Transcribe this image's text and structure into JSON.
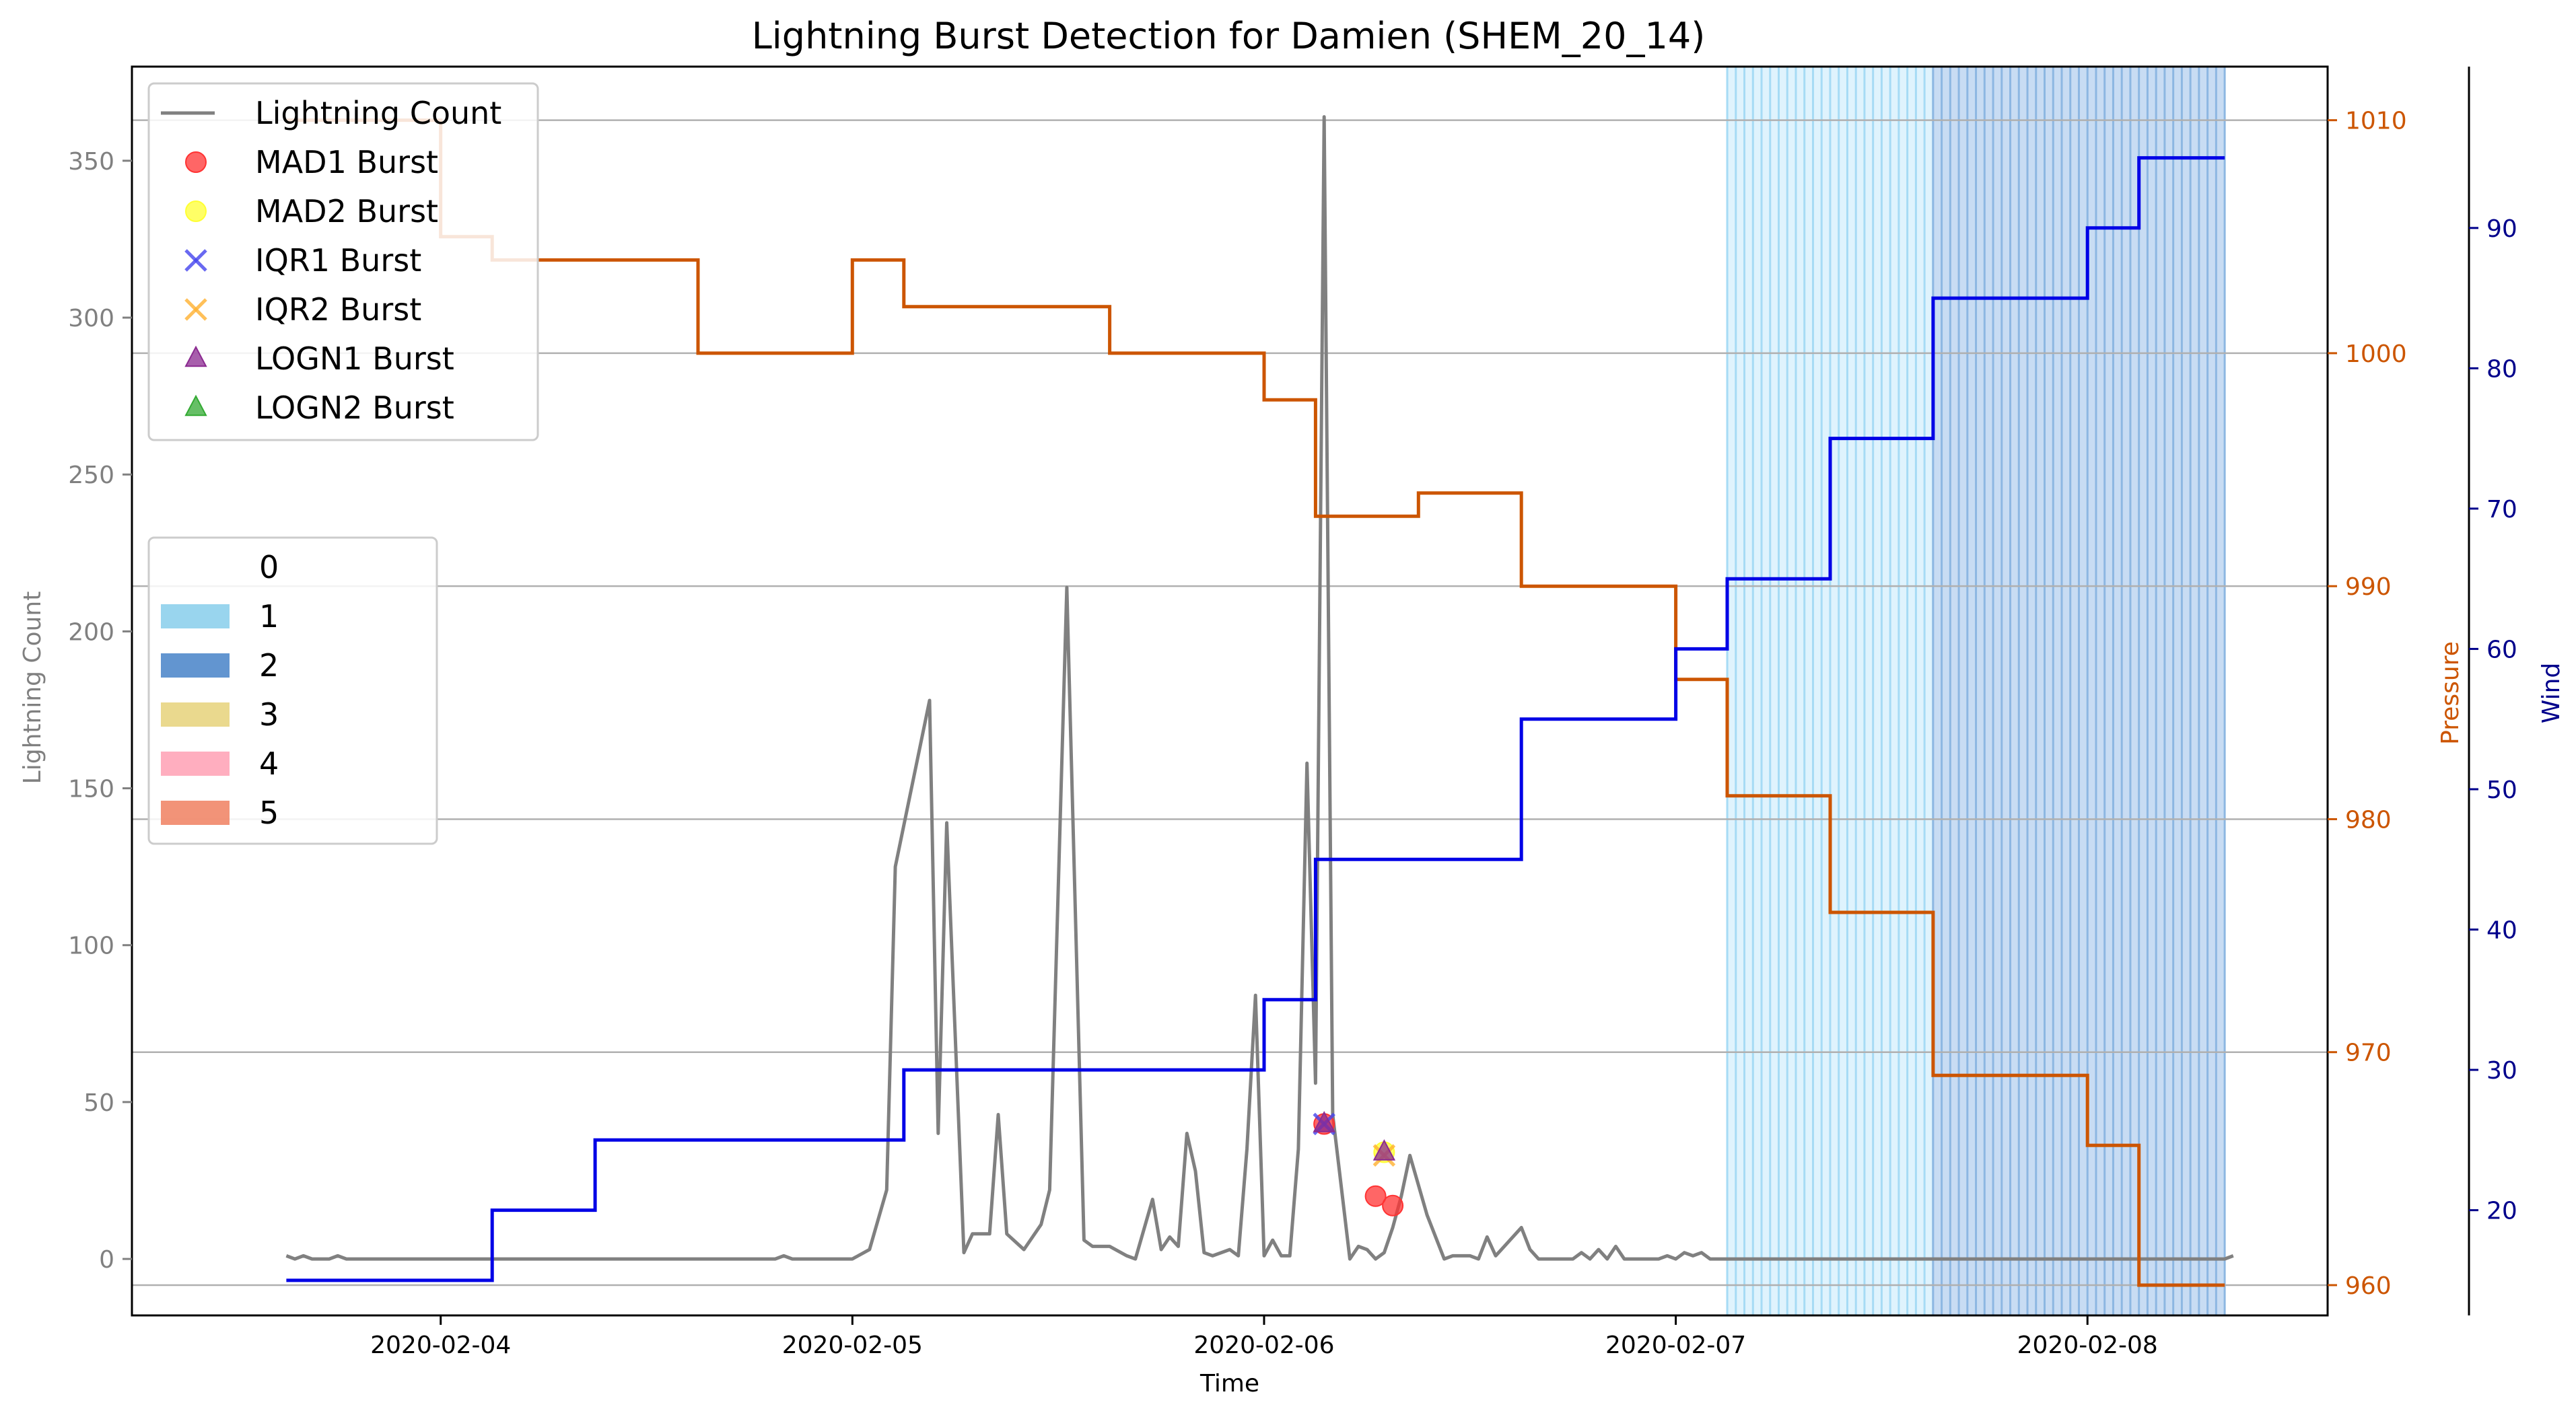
{
  "chart_data": {
    "type": "line",
    "title": "Lightning Burst Detection for Damien (SHEM_20_14)",
    "xlabel": "Time",
    "ylabel_left": "Lightning Count",
    "ylabel_pressure": "Pressure",
    "ylabel_wind": "Wind",
    "x_range": [
      "2020-02-03 06:00",
      "2020-02-08 14:00"
    ],
    "y_left_range": [
      -18,
      380
    ],
    "y_pressure_range": [
      958.7,
      1012.3
    ],
    "y_wind_range": [
      12.5,
      101.5
    ],
    "grid": "horizontal lines at pressure ticks",
    "x_ticks": [
      "2020-02-04",
      "2020-02-05",
      "2020-02-06",
      "2020-02-07",
      "2020-02-08"
    ],
    "y_left_ticks": [
      0,
      50,
      100,
      150,
      200,
      250,
      300,
      350
    ],
    "y_pressure_ticks": [
      960,
      970,
      980,
      990,
      1000,
      1010
    ],
    "y_wind_ticks": [
      20,
      30,
      40,
      50,
      60,
      70,
      80,
      90
    ],
    "colors": {
      "lightning": "#808080",
      "pressure": "#cc5500",
      "wind": "#0000e6",
      "wind_axis": "#00008b",
      "cat1": "#87ceeb",
      "cat2": "#4682c8",
      "cat3": "#e6d27a",
      "cat4": "#ffa0b4",
      "cat5": "#f08060"
    },
    "series": [
      {
        "name": "Lightning Count",
        "axis": "left",
        "color": "#808080",
        "points": [
          [
            "2020-02-03 15:00",
            1
          ],
          [
            "2020-02-03 15:30",
            0
          ],
          [
            "2020-02-03 16:00",
            1
          ],
          [
            "2020-02-03 16:30",
            0
          ],
          [
            "2020-02-03 17:30",
            0
          ],
          [
            "2020-02-03 18:00",
            1
          ],
          [
            "2020-02-03 18:30",
            0
          ],
          [
            "2020-02-04 19:30",
            0
          ],
          [
            "2020-02-04 20:00",
            1
          ],
          [
            "2020-02-04 20:30",
            0
          ],
          [
            "2020-02-05 00:00",
            0
          ],
          [
            "2020-02-05 01:00",
            3
          ],
          [
            "2020-02-05 02:00",
            22
          ],
          [
            "2020-02-05 02:30",
            125
          ],
          [
            "2020-02-05 04:30",
            178
          ],
          [
            "2020-02-05 05:00",
            40
          ],
          [
            "2020-02-05 05:30",
            139
          ],
          [
            "2020-02-05 06:30",
            2
          ],
          [
            "2020-02-05 07:00",
            8
          ],
          [
            "2020-02-05 08:00",
            8
          ],
          [
            "2020-02-05 08:30",
            46
          ],
          [
            "2020-02-05 09:00",
            8
          ],
          [
            "2020-02-05 10:00",
            3
          ],
          [
            "2020-02-05 11:00",
            11
          ],
          [
            "2020-02-05 11:30",
            22
          ],
          [
            "2020-02-05 12:30",
            214
          ],
          [
            "2020-02-05 13:30",
            6
          ],
          [
            "2020-02-05 14:00",
            4
          ],
          [
            "2020-02-05 15:00",
            4
          ],
          [
            "2020-02-05 16:00",
            1
          ],
          [
            "2020-02-05 16:30",
            0
          ],
          [
            "2020-02-05 17:30",
            19
          ],
          [
            "2020-02-05 18:00",
            3
          ],
          [
            "2020-02-05 18:30",
            7
          ],
          [
            "2020-02-05 19:00",
            4
          ],
          [
            "2020-02-05 19:30",
            40
          ],
          [
            "2020-02-05 20:00",
            28
          ],
          [
            "2020-02-05 20:30",
            2
          ],
          [
            "2020-02-05 21:00",
            1
          ],
          [
            "2020-02-05 22:00",
            3
          ],
          [
            "2020-02-05 22:30",
            1
          ],
          [
            "2020-02-05 23:00",
            35
          ],
          [
            "2020-02-05 23:30",
            84
          ],
          [
            "2020-02-06 00:00",
            1
          ],
          [
            "2020-02-06 00:30",
            6
          ],
          [
            "2020-02-06 01:00",
            1
          ],
          [
            "2020-02-06 01:30",
            1
          ],
          [
            "2020-02-06 02:00",
            35
          ],
          [
            "2020-02-06 02:30",
            158
          ],
          [
            "2020-02-06 03:00",
            56
          ],
          [
            "2020-02-06 03:30",
            364
          ],
          [
            "2020-02-06 04:00",
            46
          ],
          [
            "2020-02-06 05:00",
            0
          ],
          [
            "2020-02-06 05:30",
            4
          ],
          [
            "2020-02-06 06:00",
            3
          ],
          [
            "2020-02-06 06:30",
            0
          ],
          [
            "2020-02-06 07:00",
            2
          ],
          [
            "2020-02-06 07:30",
            10
          ],
          [
            "2020-02-06 08:00",
            20
          ],
          [
            "2020-02-06 08:30",
            33
          ],
          [
            "2020-02-06 09:30",
            14
          ],
          [
            "2020-02-06 10:30",
            0
          ],
          [
            "2020-02-06 11:00",
            1
          ],
          [
            "2020-02-06 12:00",
            1
          ],
          [
            "2020-02-06 12:30",
            0
          ],
          [
            "2020-02-06 13:00",
            7
          ],
          [
            "2020-02-06 13:30",
            1
          ],
          [
            "2020-02-06 14:00",
            4
          ],
          [
            "2020-02-06 15:00",
            10
          ],
          [
            "2020-02-06 15:30",
            3
          ],
          [
            "2020-02-06 16:00",
            0
          ],
          [
            "2020-02-06 18:00",
            0
          ],
          [
            "2020-02-06 18:30",
            2
          ],
          [
            "2020-02-06 19:00",
            0
          ],
          [
            "2020-02-06 19:30",
            3
          ],
          [
            "2020-02-06 20:00",
            0
          ],
          [
            "2020-02-06 20:30",
            4
          ],
          [
            "2020-02-06 21:00",
            0
          ],
          [
            "2020-02-06 23:00",
            0
          ],
          [
            "2020-02-06 23:30",
            1
          ],
          [
            "2020-02-07 00:00",
            0
          ],
          [
            "2020-02-07 00:30",
            2
          ],
          [
            "2020-02-07 01:00",
            1
          ],
          [
            "2020-02-07 01:30",
            2
          ],
          [
            "2020-02-07 02:00",
            0
          ],
          [
            "2020-02-08 08:00",
            0
          ],
          [
            "2020-02-08 08:30",
            1
          ]
        ]
      },
      {
        "name": "Pressure",
        "axis": "pressure",
        "color": "#cc5500",
        "step_points": [
          [
            "2020-02-03 15:00",
            1010
          ],
          [
            "2020-02-04 00:00",
            1005
          ],
          [
            "2020-02-04 03:00",
            1004
          ],
          [
            "2020-02-04 15:00",
            1000
          ],
          [
            "2020-02-05 00:00",
            1004
          ],
          [
            "2020-02-05 03:00",
            1002
          ],
          [
            "2020-02-05 15:00",
            1000
          ],
          [
            "2020-02-06 00:00",
            998
          ],
          [
            "2020-02-06 03:00",
            993
          ],
          [
            "2020-02-06 09:00",
            994
          ],
          [
            "2020-02-06 15:00",
            990
          ],
          [
            "2020-02-07 00:00",
            986
          ],
          [
            "2020-02-07 03:00",
            981
          ],
          [
            "2020-02-07 09:00",
            976
          ],
          [
            "2020-02-07 15:00",
            969
          ],
          [
            "2020-02-08 00:00",
            966
          ],
          [
            "2020-02-08 03:00",
            960
          ],
          [
            "2020-02-08 08:00",
            960
          ]
        ]
      },
      {
        "name": "Wind",
        "axis": "wind",
        "color": "#0000e6",
        "step_points": [
          [
            "2020-02-03 15:00",
            15
          ],
          [
            "2020-02-04 03:00",
            20
          ],
          [
            "2020-02-04 09:00",
            25
          ],
          [
            "2020-02-05 03:00",
            30
          ],
          [
            "2020-02-06 00:00",
            35
          ],
          [
            "2020-02-06 03:00",
            45
          ],
          [
            "2020-02-06 15:00",
            55
          ],
          [
            "2020-02-07 00:00",
            60
          ],
          [
            "2020-02-07 03:00",
            65
          ],
          [
            "2020-02-07 09:00",
            75
          ],
          [
            "2020-02-07 15:00",
            85
          ],
          [
            "2020-02-08 00:00",
            90
          ],
          [
            "2020-02-08 03:00",
            95
          ],
          [
            "2020-02-08 08:00",
            95
          ]
        ]
      }
    ],
    "bursts": [
      {
        "name": "MAD1 Burst",
        "marker": "circle",
        "color": "#ff3333",
        "points": [
          [
            "2020-02-06 03:30",
            43
          ],
          [
            "2020-02-06 06:30",
            20
          ],
          [
            "2020-02-06 07:30",
            17
          ]
        ]
      },
      {
        "name": "MAD2 Burst",
        "marker": "circle",
        "color": "#ffff33",
        "points": [
          [
            "2020-02-06 07:00",
            34
          ]
        ]
      },
      {
        "name": "IQR1 Burst",
        "marker": "x",
        "color": "#4444ee",
        "points": [
          [
            "2020-02-06 03:30",
            43
          ]
        ]
      },
      {
        "name": "IQR2 Burst",
        "marker": "x",
        "color": "#ffb030",
        "points": [
          [
            "2020-02-06 07:00",
            33
          ]
        ]
      },
      {
        "name": "LOGN1 Burst",
        "marker": "triangle",
        "color": "#8b2a90",
        "points": [
          [
            "2020-02-06 03:30",
            43
          ],
          [
            "2020-02-06 07:00",
            34
          ]
        ]
      },
      {
        "name": "LOGN2 Burst",
        "marker": "triangle",
        "color": "#33aa33",
        "points": []
      }
    ],
    "category_spans": [
      {
        "category": "1",
        "start": "2020-02-07 03:00",
        "end": "2020-02-07 15:00"
      },
      {
        "category": "2",
        "start": "2020-02-07 15:00",
        "end": "2020-02-08 08:00"
      }
    ],
    "legend_series": [
      "Lightning Count",
      "MAD1 Burst",
      "MAD2 Burst",
      "IQR1 Burst",
      "IQR2 Burst",
      "LOGN1 Burst",
      "LOGN2 Burst"
    ],
    "legend_categories": [
      "0",
      "1",
      "2",
      "3",
      "4",
      "5"
    ],
    "legend_placement": "upper-left"
  }
}
